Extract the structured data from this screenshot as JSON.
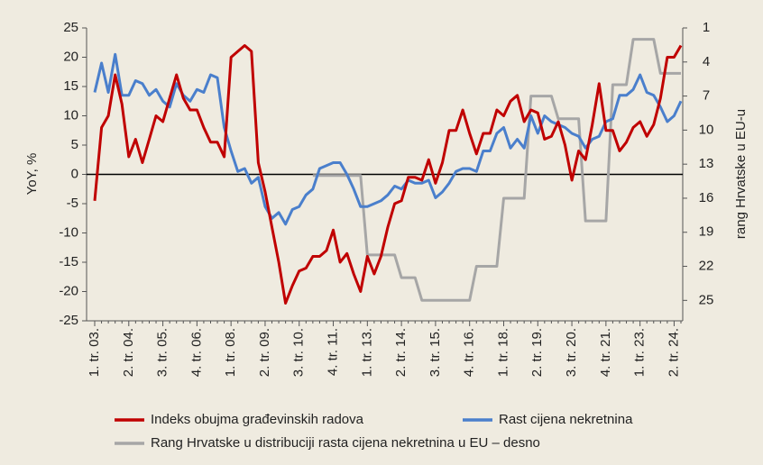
{
  "chart_data": {
    "type": "line",
    "ylabel": "YoY, %",
    "y2label": "rang Hrvatske u EU-u",
    "categories": [
      "1. tr. 03.",
      null,
      null,
      null,
      null,
      "2. tr. 04.",
      null,
      null,
      null,
      null,
      "3. tr. 05.",
      null,
      null,
      null,
      null,
      "4. tr. 06.",
      null,
      null,
      null,
      null,
      "1. tr. 08.",
      null,
      null,
      null,
      null,
      "2. tr. 09.",
      null,
      null,
      null,
      null,
      "3. tr. 10.",
      null,
      null,
      null,
      null,
      "4. tr. 11.",
      null,
      null,
      null,
      null,
      "1. tr. 13.",
      null,
      null,
      null,
      null,
      "2. tr. 14.",
      null,
      null,
      null,
      null,
      "3. tr. 15.",
      null,
      null,
      null,
      null,
      "4. tr. 16.",
      null,
      null,
      null,
      null,
      "1. tr. 18.",
      null,
      null,
      null,
      null,
      "2. tr. 19.",
      null,
      null,
      null,
      null,
      "3. tr. 20.",
      null,
      null,
      null,
      null,
      "4. tr. 21.",
      null,
      null,
      null,
      null,
      "1. tr. 23.",
      null,
      null,
      null,
      null,
      "2. tr. 24.",
      null
    ],
    "series": [
      {
        "name": "Indeks obujma građevinskih radova",
        "color": "#c00000",
        "axis": "y",
        "values": [
          -4.5,
          8,
          10,
          17,
          12,
          3,
          6,
          2,
          6,
          10,
          9,
          13,
          17,
          13,
          11,
          11,
          8,
          5.5,
          5.5,
          3,
          20,
          21,
          22,
          21,
          2,
          -3,
          -9,
          -15,
          -22,
          -19,
          -16.5,
          -16,
          -14,
          -14,
          -13,
          -9.5,
          -15,
          -13.5,
          -17,
          -20,
          -14,
          -17,
          -14,
          -9,
          -5,
          -4.5,
          -0.5,
          -0.5,
          -1,
          2.5,
          -1.5,
          2,
          7.5,
          7.5,
          11,
          7,
          3.5,
          7,
          7,
          11,
          10,
          12.5,
          13.5,
          9,
          11,
          10.5,
          6,
          6.5,
          9,
          5,
          -1,
          4,
          2.5,
          8.5,
          15.5,
          7.5,
          7.5,
          4,
          5.5,
          8,
          9,
          6.5,
          8.5,
          13,
          20,
          20,
          22
        ]
      },
      {
        "name": "Rast cijena nekretnina",
        "color": "#4a7fcc",
        "axis": "y",
        "values": [
          14,
          19,
          14,
          20.5,
          13.5,
          13.5,
          16,
          15.5,
          13.5,
          14.5,
          12.5,
          11.5,
          15.5,
          13.5,
          12.5,
          14.5,
          14,
          17,
          16.5,
          8,
          4,
          0.5,
          1,
          -1.5,
          -0.5,
          -5.5,
          -7.5,
          -6.5,
          -8.5,
          -6,
          -5.5,
          -3.5,
          -2.5,
          1,
          1.5,
          2,
          2,
          0,
          -2.5,
          -5.5,
          -5.5,
          -5,
          -4.5,
          -3.5,
          -2,
          -2.5,
          -1,
          -1.5,
          -1.5,
          -1,
          -4,
          -3,
          -1.5,
          0.5,
          1,
          1,
          0.5,
          4,
          4,
          7,
          8,
          4.5,
          6,
          4.5,
          10,
          7,
          10,
          9,
          8.5,
          8,
          7,
          6.5,
          4.5,
          6,
          6.5,
          9,
          9.5,
          13.5,
          13.5,
          14.5,
          17,
          14,
          13.5,
          11.5,
          9,
          10,
          12.5
        ]
      },
      {
        "name": "Rang Hrvatske u distribuciji rasta cijena nekretnina u EU – desno",
        "color": "#a6a6a6",
        "axis": "y2",
        "values": [
          null,
          null,
          null,
          null,
          null,
          null,
          null,
          null,
          null,
          null,
          null,
          null,
          null,
          null,
          null,
          null,
          null,
          null,
          null,
          null,
          null,
          null,
          null,
          null,
          null,
          null,
          null,
          null,
          null,
          null,
          null,
          null,
          14,
          14,
          14,
          14,
          14,
          14,
          14,
          14,
          21,
          21,
          21,
          21,
          21,
          23,
          23,
          23,
          25,
          25,
          25,
          25,
          25,
          25,
          25,
          25,
          22,
          22,
          22,
          22,
          16,
          16,
          16,
          16,
          7,
          7,
          7,
          7,
          9,
          9,
          9,
          9,
          18,
          18,
          18,
          18,
          6,
          6,
          6,
          2,
          2,
          2,
          2,
          5,
          5,
          5,
          5
        ]
      }
    ],
    "ylim": [
      -25,
      25
    ],
    "yticks": [
      -25,
      -20,
      -15,
      -10,
      -5,
      0,
      5,
      10,
      15,
      20,
      25
    ],
    "y2lim": [
      1,
      26.8
    ],
    "y2_inverted": true,
    "y2ticks": [
      1,
      4,
      7,
      10,
      13,
      16,
      19,
      22,
      25
    ],
    "zero_line": true,
    "legend": "bottom"
  }
}
